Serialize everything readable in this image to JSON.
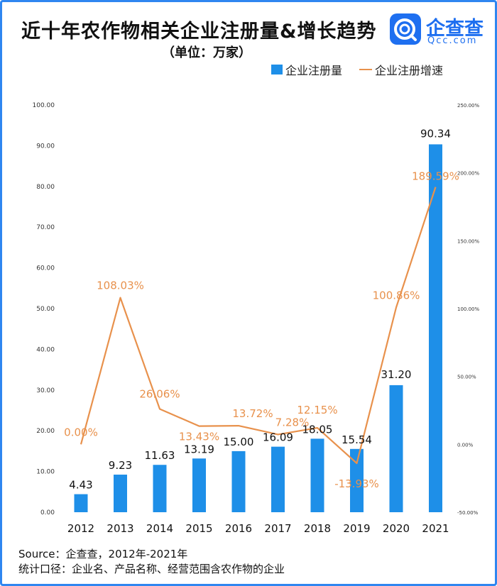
{
  "header": {
    "title": "近十年农作物相关企业注册量&增长趋势",
    "unit": "（单位：万家）"
  },
  "brand": {
    "name": "企查查",
    "site": "Qcc.com",
    "logo_icon": "qcc-logo-icon",
    "color": "#1e6ff0"
  },
  "legend": {
    "bar_label": "企业注册量",
    "line_label": "企业注册增速"
  },
  "footer": {
    "source": "Source：企查查，2012年-2021年",
    "note": "统计口径：企业名、产品名称、经营范围含农作物的企业"
  },
  "colors": {
    "bar": "#1e8fe8",
    "line": "#e8914c",
    "frame": "#2f86f0"
  },
  "chart_data": {
    "type": "bar",
    "categories": [
      "2012",
      "2013",
      "2014",
      "2015",
      "2016",
      "2017",
      "2018",
      "2019",
      "2020",
      "2021"
    ],
    "series": [
      {
        "name": "企业注册量",
        "type": "bar",
        "axis": "left",
        "values": [
          4.43,
          9.23,
          11.63,
          13.19,
          15.0,
          16.09,
          18.05,
          15.54,
          31.2,
          90.34
        ],
        "labels": [
          "4.43",
          "9.23",
          "11.63",
          "13.19",
          "15.00",
          "16.09",
          "18.05",
          "15.54",
          "31.20",
          "90.34"
        ]
      },
      {
        "name": "企业注册增速",
        "type": "line",
        "axis": "right",
        "values": [
          0.0,
          108.03,
          26.06,
          13.43,
          13.72,
          7.28,
          12.15,
          -13.93,
          100.86,
          189.59
        ],
        "labels": [
          "0.00%",
          "108.03%",
          "26.06%",
          "13.43%",
          "13.72%",
          "7.28%",
          "12.15%",
          "-13.93%",
          "100.86%",
          "189.59%"
        ]
      }
    ],
    "y_left": {
      "ylim": [
        0,
        100
      ],
      "ticks": [
        "0.00",
        "10.00",
        "20.00",
        "30.00",
        "40.00",
        "50.00",
        "60.00",
        "70.00",
        "80.00",
        "90.00",
        "100.00"
      ]
    },
    "y_right": {
      "ylim": [
        -50,
        250
      ],
      "ticks": [
        "-50.00%",
        "0.00%",
        "50.00%",
        "100.00%",
        "150.00%",
        "200.00%",
        "250.00%"
      ]
    },
    "grid": false,
    "legend_position": "top-right"
  }
}
